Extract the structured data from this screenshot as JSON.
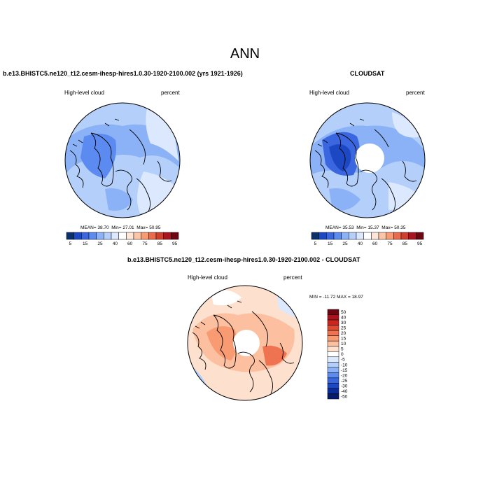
{
  "page": {
    "title": "ANN"
  },
  "panels": [
    {
      "case_title": "b.e13.BHISTC5.ne120_t12.cesm-ihesp-hires1.0.30-1920-2100.002 (yrs 1921-1926)",
      "var_label": "High-level cloud",
      "units": "percent",
      "stats": {
        "mean_label": "MEAN=",
        "mean": "38.70",
        "min_label": "Min=",
        "min": "27.01",
        "max_label": "Max=",
        "max": "50.95"
      },
      "colorbar": {
        "tick_labels": [
          "5",
          "15",
          "25",
          "40",
          "60",
          "75",
          "85",
          "95"
        ],
        "colors": [
          "#08306b",
          "#1c48c4",
          "#3a67e0",
          "#5b8af0",
          "#8bb2f6",
          "#b4cffa",
          "#dbe8fd",
          "#ffffff",
          "#fde6d8",
          "#fcc6a6",
          "#f89b72",
          "#ec6a4c",
          "#d03f2c",
          "#a8141f",
          "#6e0510"
        ]
      }
    },
    {
      "case_title": "CLOUDSAT",
      "var_label": "High-level cloud",
      "units": "percent",
      "stats": {
        "mean_label": "MEAN=",
        "mean": "35.53",
        "min_label": "Min=",
        "min": "15.37",
        "max_label": "Max=",
        "max": "50.35"
      },
      "colorbar": {
        "tick_labels": [
          "5",
          "15",
          "25",
          "40",
          "60",
          "75",
          "85",
          "95"
        ],
        "colors": [
          "#08306b",
          "#1c48c4",
          "#3a67e0",
          "#5b8af0",
          "#8bb2f6",
          "#b4cffa",
          "#dbe8fd",
          "#ffffff",
          "#fde6d8",
          "#fcc6a6",
          "#f89b72",
          "#ec6a4c",
          "#d03f2c",
          "#a8141f",
          "#6e0510"
        ]
      }
    },
    {
      "case_title": "b.e13.BHISTC5.ne120_t12.cesm-ihesp-hires1.0.30-1920-2100.002 - CLOUDSAT",
      "var_label": "High-level cloud",
      "units": "percent",
      "stats_text": "MIN = -11.72 MAX =  18.97",
      "colorbar": {
        "tick_labels": [
          "50",
          "40",
          "30",
          "25",
          "20",
          "15",
          "10",
          "5",
          "0",
          "-5",
          "-10",
          "-15",
          "-20",
          "-25",
          "-30",
          "-40",
          "-50"
        ],
        "colors": [
          "#6e0510",
          "#a8141f",
          "#c9261f",
          "#e04a2e",
          "#ef7350",
          "#f89b72",
          "#fcc0a0",
          "#fde0cd",
          "#ffffff",
          "#dbe8fd",
          "#b4cffa",
          "#8bb2f6",
          "#5b8af0",
          "#3a67e0",
          "#1c48c4",
          "#0b2d9a",
          "#061a6b"
        ]
      }
    }
  ]
}
